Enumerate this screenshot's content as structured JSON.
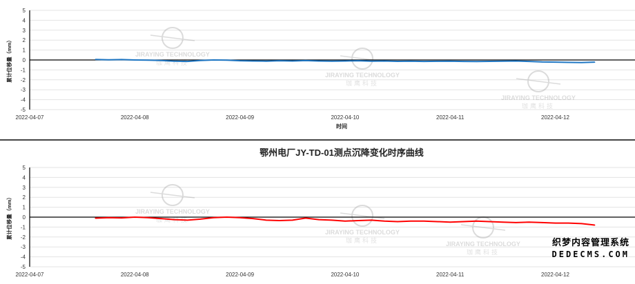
{
  "chart_data": [
    {
      "type": "line",
      "title": "",
      "xlabel": "时间",
      "ylabel": "累计位移量（mm）",
      "ylim": [
        -5,
        5
      ],
      "yticks": [
        5,
        4,
        3,
        2,
        1,
        0,
        -1,
        -2,
        -3,
        -4,
        -5
      ],
      "xticks": [
        "2022-04-07",
        "2022-04-08",
        "2022-04-09",
        "2022-04-10",
        "2022-04-11",
        "2022-04-12"
      ],
      "grid": true,
      "series_color": "#1f77c4",
      "start": "2022-04-07 15:00",
      "step_hours": 3,
      "values": [
        0.05,
        0.02,
        0.04,
        0.0,
        -0.02,
        -0.05,
        -0.12,
        -0.15,
        -0.05,
        0.0,
        -0.02,
        -0.08,
        -0.1,
        -0.12,
        -0.08,
        -0.1,
        -0.06,
        -0.1,
        -0.12,
        -0.1,
        -0.08,
        -0.12,
        -0.1,
        -0.14,
        -0.12,
        -0.15,
        -0.13,
        -0.12,
        -0.15,
        -0.16,
        -0.14,
        -0.12,
        -0.1,
        -0.15,
        -0.2,
        -0.22,
        -0.24,
        -0.26,
        -0.22
      ]
    },
    {
      "type": "line",
      "title": "鄂州电厂JY-TD-01测点沉降变化时序曲线",
      "xlabel": "",
      "ylabel": "累计位移量（mm）",
      "ylim": [
        -5,
        5
      ],
      "yticks": [
        5,
        4,
        3,
        2,
        1,
        0,
        -1,
        -2,
        -3,
        -4,
        -5
      ],
      "xticks": [
        "2022-04-07",
        "2022-04-08",
        "2022-04-09",
        "2022-04-10",
        "2022-04-11",
        "2022-04-12"
      ],
      "grid": true,
      "series_color": "#ff0000",
      "start": "2022-04-07 15:00",
      "step_hours": 3,
      "values": [
        -0.1,
        -0.05,
        -0.08,
        0.0,
        -0.05,
        -0.15,
        -0.25,
        -0.3,
        -0.2,
        -0.05,
        0.0,
        -0.05,
        -0.15,
        -0.3,
        -0.35,
        -0.3,
        -0.1,
        -0.25,
        -0.3,
        -0.4,
        -0.35,
        -0.3,
        -0.4,
        -0.45,
        -0.4,
        -0.4,
        -0.45,
        -0.5,
        -0.45,
        -0.4,
        -0.45,
        -0.5,
        -0.55,
        -0.5,
        -0.55,
        -0.6,
        -0.6,
        -0.65,
        -0.8
      ]
    }
  ],
  "watermark": {
    "brand": "JIRAYING TECHNOLOGY",
    "cn": "珈鹰科技",
    "site_cn": "织梦内容管理系统",
    "site": "DEDECMS.COM"
  }
}
